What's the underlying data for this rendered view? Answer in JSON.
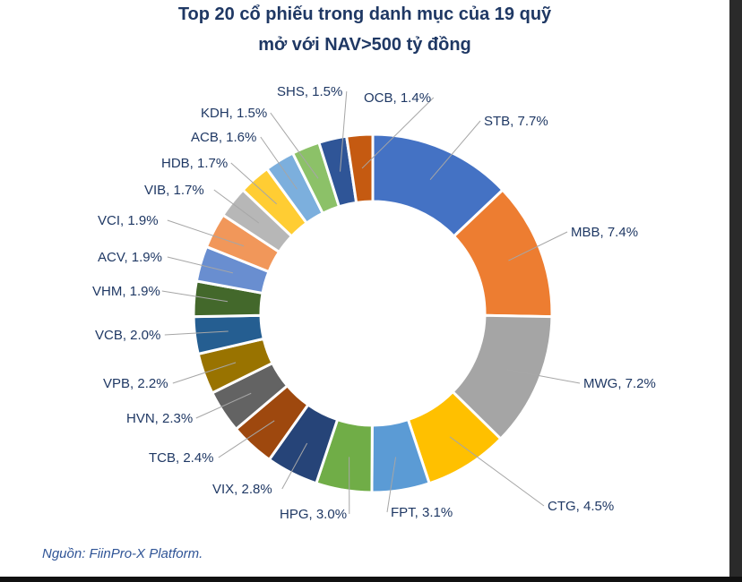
{
  "title_line1": "Top 20 cổ phiếu trong danh mục của 19 quỹ",
  "title_line2": "mở với NAV>500 tỷ đồng",
  "source": "Nguồn: FiinPro-X Platform.",
  "chart_data": {
    "type": "pie",
    "variant": "donut",
    "title": "Top 20 cổ phiếu trong danh mục của 19 quỹ mở với NAV>500 tỷ đồng",
    "slices": [
      {
        "label": "STB",
        "value": 7.7,
        "display": "STB, 7.7%",
        "color": "#4472c4"
      },
      {
        "label": "MBB",
        "value": 7.4,
        "display": "MBB, 7.4%",
        "color": "#ed7d31"
      },
      {
        "label": "MWG",
        "value": 7.2,
        "display": "MWG, 7.2%",
        "color": "#a5a5a5"
      },
      {
        "label": "CTG",
        "value": 4.5,
        "display": "CTG, 4.5%",
        "color": "#ffc000"
      },
      {
        "label": "FPT",
        "value": 3.1,
        "display": "FPT, 3.1%",
        "color": "#5b9bd5"
      },
      {
        "label": "HPG",
        "value": 3.0,
        "display": "HPG, 3.0%",
        "color": "#70ad47"
      },
      {
        "label": "VIX",
        "value": 2.8,
        "display": "VIX, 2.8%",
        "color": "#264478"
      },
      {
        "label": "TCB",
        "value": 2.4,
        "display": "TCB, 2.4%",
        "color": "#9e480e"
      },
      {
        "label": "HVN",
        "value": 2.3,
        "display": "HVN, 2.3%",
        "color": "#636363"
      },
      {
        "label": "VPB",
        "value": 2.2,
        "display": "VPB, 2.2%",
        "color": "#997300"
      },
      {
        "label": "VCB",
        "value": 2.0,
        "display": "VCB, 2.0%",
        "color": "#255e91"
      },
      {
        "label": "VHM",
        "value": 1.9,
        "display": "VHM, 1.9%",
        "color": "#43682b"
      },
      {
        "label": "ACV",
        "value": 1.9,
        "display": "ACV, 1.9%",
        "color": "#698ed0"
      },
      {
        "label": "VCI",
        "value": 1.9,
        "display": "VCI, 1.9%",
        "color": "#f1975a"
      },
      {
        "label": "VIB",
        "value": 1.7,
        "display": "VIB, 1.7%",
        "color": "#b7b7b7"
      },
      {
        "label": "HDB",
        "value": 1.7,
        "display": "HDB, 1.7%",
        "color": "#ffcd33"
      },
      {
        "label": "ACB",
        "value": 1.6,
        "display": "ACB, 1.6%",
        "color": "#7cafdd"
      },
      {
        "label": "KDH",
        "value": 1.5,
        "display": "KDH, 1.5%",
        "color": "#8cc168"
      },
      {
        "label": "SHS",
        "value": 1.5,
        "display": "SHS, 1.5%",
        "color": "#2f5597"
      },
      {
        "label": "OCB",
        "value": 1.4,
        "display": "OCB, 1.4%",
        "color": "#c55a11"
      }
    ]
  }
}
